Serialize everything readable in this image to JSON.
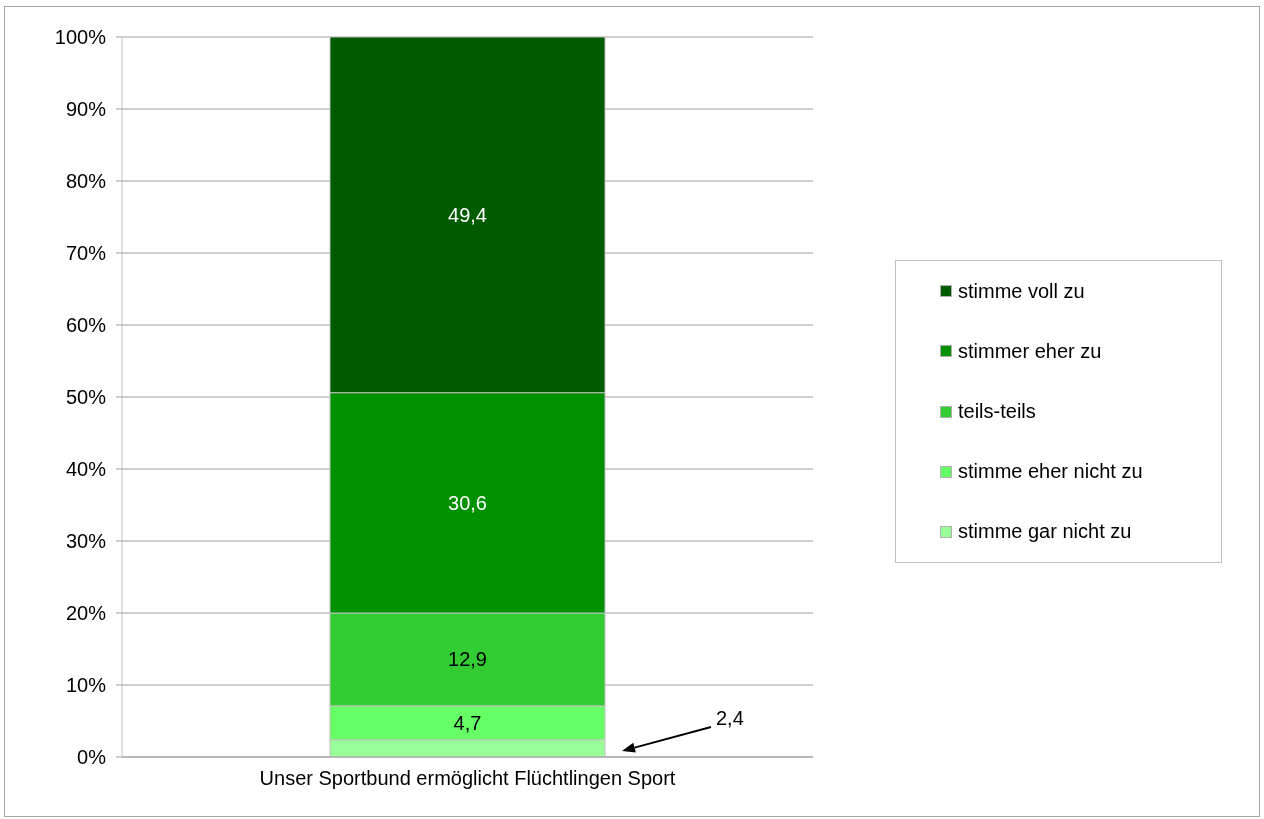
{
  "chart_data": {
    "type": "bar",
    "stacked": true,
    "categories": [
      "Unser Sportbund ermöglicht Flüchtlingen Sport"
    ],
    "series": [
      {
        "name": "stimme gar nicht zu",
        "color": "#99ff99",
        "values": [
          2.4
        ],
        "value_labels": [
          null
        ]
      },
      {
        "name": "stimme eher nicht zu",
        "color": "#66ff66",
        "values": [
          4.7
        ],
        "value_labels": [
          "4,7"
        ]
      },
      {
        "name": "teils-teils",
        "color": "#33cc33",
        "values": [
          12.9
        ],
        "value_labels": [
          "12,9"
        ]
      },
      {
        "name": "stimmer eher zu",
        "color": "#009000",
        "values": [
          30.6
        ],
        "value_labels": [
          "30,6"
        ]
      },
      {
        "name": "stimme voll zu",
        "color": "#005a00",
        "values": [
          49.4
        ],
        "value_labels": [
          "49,4"
        ]
      }
    ],
    "annotations": [
      "2,4"
    ],
    "ylim": [
      0,
      100
    ],
    "yticks": [
      {
        "value": 0,
        "label": "0%"
      },
      {
        "value": 10,
        "label": "10%"
      },
      {
        "value": 20,
        "label": "20%"
      },
      {
        "value": 30,
        "label": "30%"
      },
      {
        "value": 40,
        "label": "40%"
      },
      {
        "value": 50,
        "label": "50%"
      },
      {
        "value": 60,
        "label": "60%"
      },
      {
        "value": 70,
        "label": "70%"
      },
      {
        "value": 80,
        "label": "80%"
      },
      {
        "value": 90,
        "label": "90%"
      },
      {
        "value": 100,
        "label": "100%"
      }
    ],
    "grid": "y",
    "legend": "right"
  }
}
